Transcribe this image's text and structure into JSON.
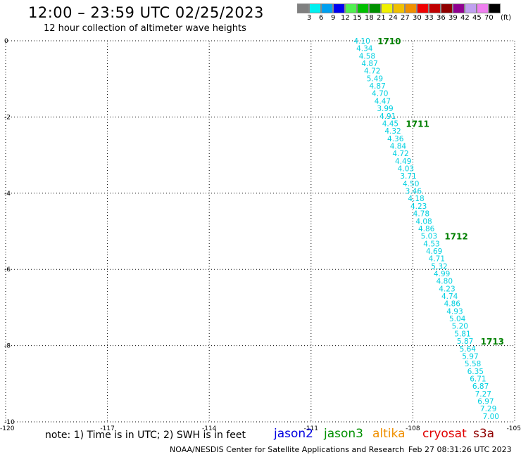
{
  "header": {
    "title": "12:00 – 23:59 UTC 02/25/2023",
    "subtitle": "12 hour collection of altimeter wave heights"
  },
  "legend": {
    "unit": "(ft)",
    "colors": [
      "#808080",
      "#00f0f0",
      "#00a0f0",
      "#0000f0",
      "#50f050",
      "#00c000",
      "#009000",
      "#f0f000",
      "#f0c000",
      "#f09000",
      "#f00000",
      "#c00000",
      "#900000",
      "#900090",
      "#c0a0f0",
      "#f080f0",
      "#000000"
    ],
    "labels": [
      "3",
      "6",
      "9",
      "12",
      "15",
      "18",
      "21",
      "24",
      "27",
      "30",
      "33",
      "36",
      "39",
      "42",
      "45",
      "70"
    ]
  },
  "chart_data": {
    "type": "scatter",
    "x_range": [
      -120,
      -105
    ],
    "y_range": [
      -10,
      0
    ],
    "x_ticks": [
      -120,
      -117,
      -114,
      -111,
      -108,
      -105
    ],
    "y_ticks": [
      0,
      -2,
      -4,
      -6,
      -8,
      -10
    ],
    "x_tick_labels": [
      "-120",
      "-117",
      "-114",
      "-111",
      "-108",
      "-105"
    ],
    "y_tick_labels": [
      "0",
      "-2",
      "-4",
      "-6",
      "-8",
      "-10"
    ],
    "grid": true,
    "point_color": "#00d0e0",
    "time_label_color": "#008000",
    "track_start": [
      -109.5,
      0.0
    ],
    "track_end": [
      -105.7,
      -9.85
    ],
    "swh_values": [
      "4.10",
      "4.34",
      "4.58",
      "4.87",
      "4.72",
      "5.49",
      "4.87",
      "4.70",
      "4.47",
      "3.99",
      "4.91",
      "4.45",
      "4.32",
      "4.36",
      "4.84",
      "4.72",
      "4.49",
      "4.03",
      "3.71",
      "4.50",
      "3.46",
      "4.18",
      "4.23",
      "4.78",
      "4.08",
      "4.86",
      "5.03",
      "4.53",
      "4.69",
      "4.71",
      "5.32",
      "4.99",
      "4.80",
      "4.23",
      "4.74",
      "4.86",
      "4.93",
      "5.04",
      "5.20",
      "5.81",
      "5.87",
      "5.64",
      "5.97",
      "5.58",
      "6.35",
      "6.71",
      "6.87",
      "7.27",
      "6.97",
      "7.29",
      "7.00"
    ],
    "time_labels": [
      {
        "text": "1710",
        "index": 0
      },
      {
        "text": "1711",
        "index": 11
      },
      {
        "text": "1712",
        "index": 26
      },
      {
        "text": "1713",
        "index": 40
      }
    ]
  },
  "note": "note:  1) Time is in UTC;  2) SWH is in feet",
  "satellites": [
    {
      "name": "jason2",
      "color": "#0000e0"
    },
    {
      "name": "jason3",
      "color": "#009000"
    },
    {
      "name": "altika",
      "color": "#f09000"
    },
    {
      "name": "cryosat",
      "color": "#e00000"
    },
    {
      "name": "s3a",
      "color": "#900000"
    }
  ],
  "footer": {
    "credit": "NOAA/NESDIS Center for Satellite Applications and Research",
    "timestamp": "Feb 27 08:31:26 UTC 2023"
  }
}
